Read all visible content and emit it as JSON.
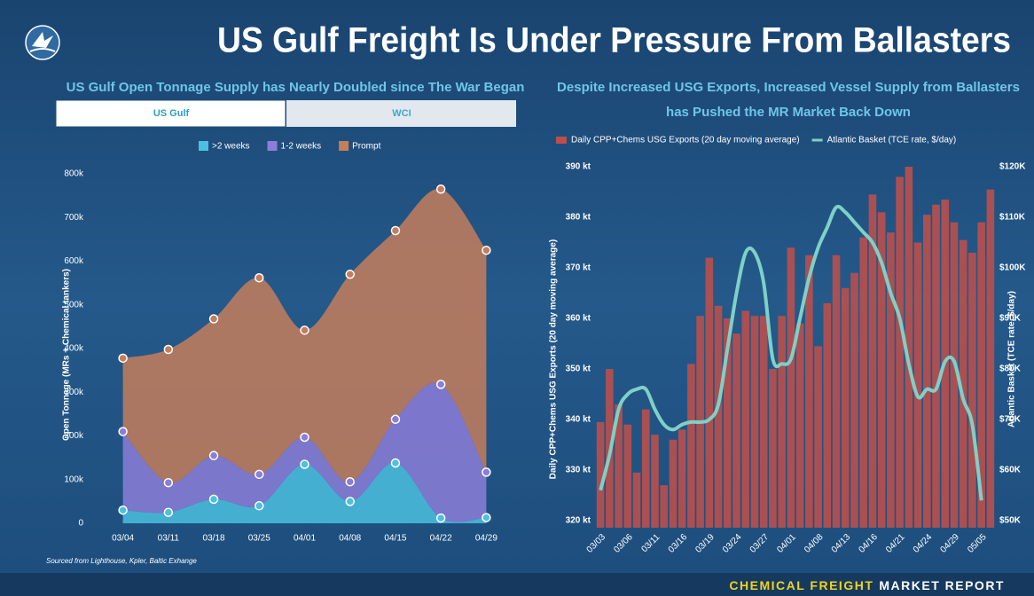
{
  "header": {
    "title": "US Gulf Freight Is Under Pressure From Ballasters"
  },
  "footer": {
    "brand": "CHEMICAL FREIGHT",
    "suffix": "MARKET REPORT"
  },
  "chart_data": [
    {
      "type": "area",
      "title": "US Gulf Open Tonnage Supply has Nearly Doubled since The War Began",
      "tabs": [
        "US Gulf",
        "WCI"
      ],
      "ylabel": "Open Tonnage (MRs + Chemical tankers)",
      "source": "Sourced from Lighthouse, Kpler, Baltic Exhange",
      "categories": [
        "03/04",
        "03/11",
        "03/18",
        "03/25",
        "04/01",
        "04/08",
        "04/15",
        "04/22",
        "04/29"
      ],
      "series": [
        {
          "name": ">2 weeks",
          "color": "#4cc0e0",
          "values": [
            30000,
            25000,
            55000,
            40000,
            135000,
            50000,
            138000,
            12000,
            13000
          ]
        },
        {
          "name": "1-2 weeks",
          "color": "#8c7ed8",
          "values": [
            180000,
            68000,
            100000,
            72000,
            62000,
            45000,
            100000,
            306000,
            104000
          ]
        },
        {
          "name": "Prompt",
          "color": "#c47e5c",
          "values": [
            168000,
            305000,
            313000,
            450000,
            245000,
            475000,
            432000,
            447000,
            508000
          ]
        }
      ],
      "ylim": [
        0,
        800000
      ],
      "yticks": [
        0,
        {
          "value": 100000,
          "label": "100k"
        },
        {
          "value": 200000,
          "label": "200k"
        },
        {
          "value": 300000,
          "label": "300k"
        },
        {
          "value": 400000,
          "label": "400k"
        },
        {
          "value": 500000,
          "label": "500k"
        },
        {
          "value": 600000,
          "label": "600k"
        },
        {
          "value": 700000,
          "label": "700k"
        },
        {
          "value": 800000,
          "label": "800k"
        }
      ],
      "stacked": true
    },
    {
      "type": "bar",
      "title": "Despite Increased USG Exports, Increased Vessel Supply from Ballasters has Pushed the MR Market Back Down",
      "ylabel": "Daily CPP+Chems USG Exports (20 day moving average)",
      "y2label": "Atlantic Basket (TCE rate, $/day)",
      "categories": [
        "03/03",
        null,
        null,
        "03/06",
        null,
        null,
        "03/11",
        null,
        null,
        "03/16",
        null,
        null,
        "03/19",
        null,
        null,
        "03/24",
        null,
        null,
        "03/27",
        null,
        null,
        "04/01",
        null,
        null,
        "04/08",
        null,
        null,
        "04/13",
        null,
        null,
        "04/16",
        null,
        null,
        "04/21",
        null,
        null,
        "04/24",
        null,
        null,
        "04/29",
        null,
        null,
        "05/05",
        null
      ],
      "series": [
        {
          "name": "Daily CPP+Chems USG Exports (20 day moving average)",
          "type": "bar",
          "color": "#b9504c",
          "values": [
            339.5,
            350,
            343,
            339,
            329.5,
            342,
            337,
            327,
            336,
            338,
            351,
            360.5,
            372,
            362.5,
            360,
            357,
            361.5,
            360.5,
            360.5,
            350,
            360.5,
            374,
            359,
            372.5,
            354.5,
            363,
            372.5,
            366,
            369,
            376,
            384.5,
            381,
            377,
            388,
            390,
            375,
            380.5,
            382.5,
            383.5,
            379,
            375.5,
            373,
            379,
            385.5
          ]
        },
        {
          "name": "Atlantic Basket (TCE rate, $/day)",
          "type": "line",
          "axis": "y2",
          "color": "#7fd0c6",
          "values": [
            56000,
            63000,
            72000,
            75000,
            76000,
            76000,
            72000,
            69000,
            68000,
            69000,
            69500,
            69500,
            70000,
            73000,
            84000,
            95000,
            103000,
            103000,
            97000,
            82000,
            81000,
            82000,
            90000,
            98000,
            104000,
            108000,
            112000,
            111000,
            109000,
            107000,
            105000,
            101000,
            95000,
            90000,
            81000,
            74500,
            76000,
            76000,
            81500,
            81500,
            74000,
            69000,
            54000,
            null
          ]
        }
      ],
      "ylim": [
        318.6,
        391
      ],
      "yticks": [
        {
          "value": 320,
          "label": "320 kt"
        },
        {
          "value": 330,
          "label": "330 kt"
        },
        {
          "value": 340,
          "label": "340 kt"
        },
        {
          "value": 350,
          "label": "350 kt"
        },
        {
          "value": 360,
          "label": "360 kt"
        },
        {
          "value": 370,
          "label": "370 kt"
        },
        {
          "value": 380,
          "label": "380 kt"
        },
        {
          "value": 390,
          "label": "390 kt"
        }
      ],
      "y2lim": [
        48600,
        121000
      ],
      "y2ticks": [
        {
          "value": 50000,
          "label": "$50K"
        },
        {
          "value": 60000,
          "label": "$60K"
        },
        {
          "value": 70000,
          "label": "$70K"
        },
        {
          "value": 80000,
          "label": "$80K"
        },
        {
          "value": 90000,
          "label": "$90K"
        },
        {
          "value": 100000,
          "label": "$100K"
        },
        {
          "value": 110000,
          "label": "$110K"
        },
        {
          "value": 120000,
          "label": "$120K"
        }
      ]
    }
  ]
}
